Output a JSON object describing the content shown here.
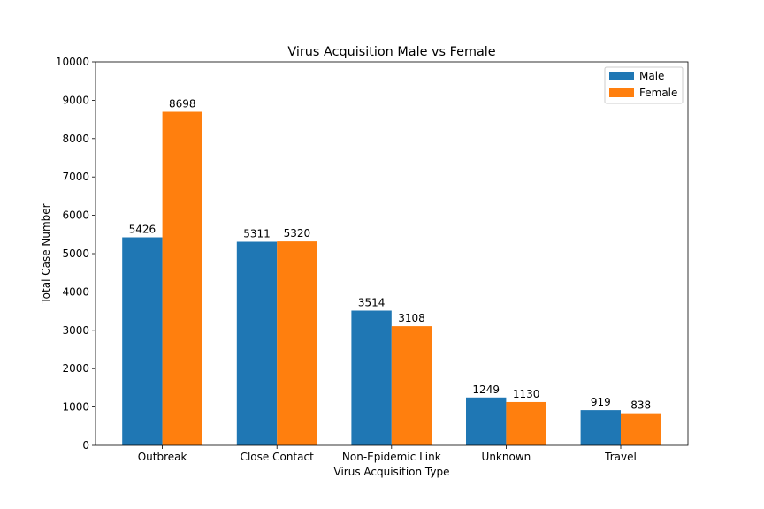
{
  "chart_data": {
    "type": "bar",
    "title": "Virus Acquisition Male vs Female",
    "xlabel": "Virus Acquisition Type",
    "ylabel": "Total Case Number",
    "categories": [
      "Outbreak",
      "Close Contact",
      "Non-Epidemic Link",
      "Unknown",
      "Travel"
    ],
    "series": [
      {
        "name": "Male",
        "color": "#1f77b4",
        "values": [
          5426,
          5311,
          3514,
          1249,
          919
        ]
      },
      {
        "name": "Female",
        "color": "#ff7f0e",
        "values": [
          8698,
          5320,
          3108,
          1130,
          838
        ]
      }
    ],
    "ylim": [
      0,
      10000
    ],
    "yticks": [
      0,
      1000,
      2000,
      3000,
      4000,
      5000,
      6000,
      7000,
      8000,
      9000,
      10000
    ],
    "grid": false,
    "legend_position": "top-right"
  }
}
